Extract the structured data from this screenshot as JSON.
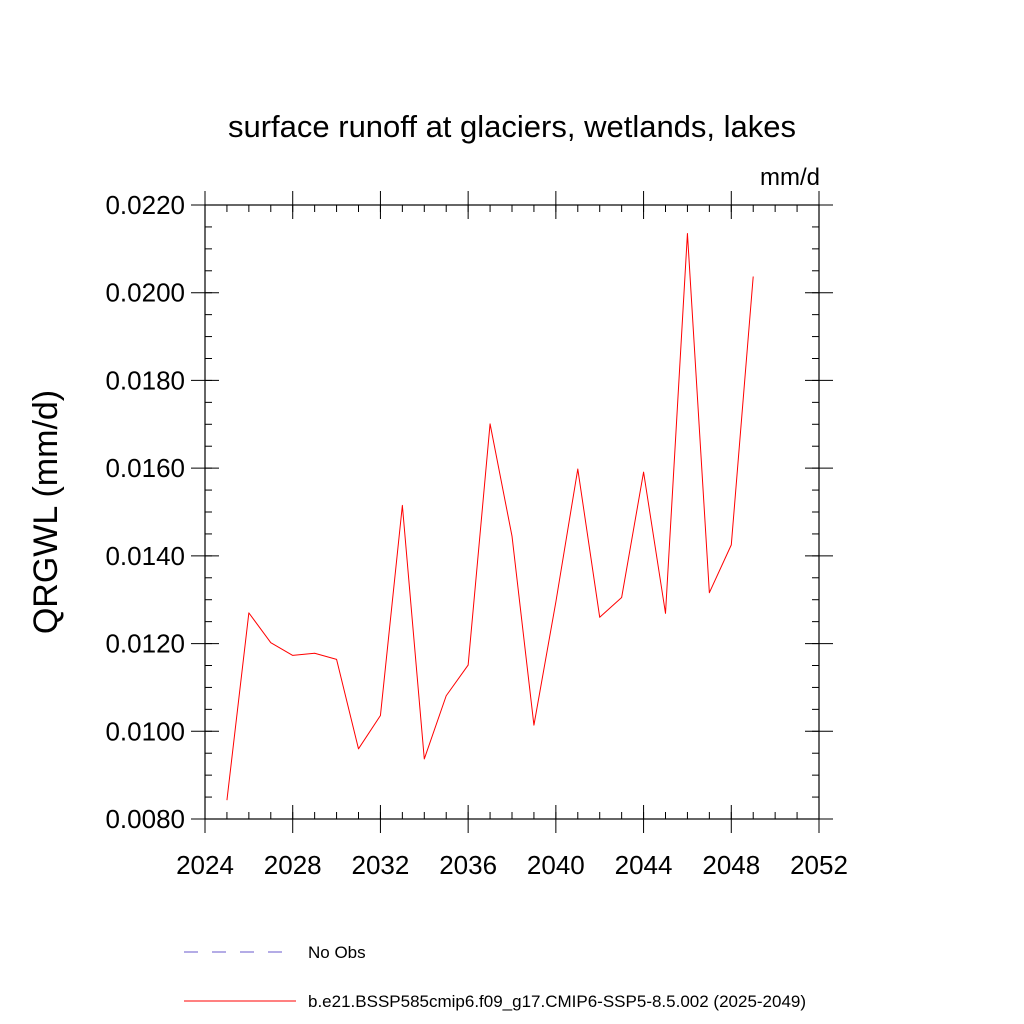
{
  "chart_data": {
    "type": "line",
    "title": "surface runoff at glaciers, wetlands, lakes",
    "units": "mm/d",
    "ylabel": "QRGWL  (mm/d)",
    "xlabel": "",
    "xlim": [
      2024,
      2052
    ],
    "ylim": [
      0.008,
      0.022
    ],
    "x_major_ticks": [
      2024,
      2028,
      2032,
      2036,
      2040,
      2044,
      2048,
      2052
    ],
    "x_tick_labels": [
      "2024",
      "2028",
      "2032",
      "2036",
      "2040",
      "2044",
      "2048",
      "2052"
    ],
    "y_major_ticks": [
      0.008,
      0.01,
      0.012,
      0.014,
      0.016,
      0.018,
      0.02,
      0.022
    ],
    "y_tick_labels": [
      "0.0080",
      "0.0100",
      "0.0120",
      "0.0140",
      "0.0160",
      "0.0180",
      "0.0200",
      "0.0220"
    ],
    "x_minor_step": 1,
    "y_minor_step": 0.0005,
    "grid": false,
    "legend_position": "bottom",
    "series": [
      {
        "name": "b.e21.BSSP585cmip6.f09_g17.CMIP6-SSP5-8.5.002 (2025-2049)",
        "color": "#ff0000",
        "style": "solid",
        "x": [
          2025,
          2026,
          2027,
          2028,
          2029,
          2030,
          2031,
          2032,
          2033,
          2034,
          2035,
          2036,
          2037,
          2038,
          2039,
          2040,
          2041,
          2042,
          2043,
          2044,
          2045,
          2046,
          2047,
          2048,
          2049
        ],
        "y": [
          0.00843,
          0.0127,
          0.01202,
          0.01173,
          0.01178,
          0.01164,
          0.0096,
          0.01036,
          0.01515,
          0.00937,
          0.01081,
          0.01151,
          0.01701,
          0.01445,
          0.01014,
          0.01295,
          0.01598,
          0.0126,
          0.01305,
          0.01591,
          0.01269,
          0.02135,
          0.01316,
          0.01425,
          0.02037
        ]
      }
    ],
    "legend": [
      {
        "label": "No Obs",
        "color": "#6a5acd",
        "style": "dashed"
      },
      {
        "label": "b.e21.BSSP585cmip6.f09_g17.CMIP6-SSP5-8.5.002 (2025-2049)",
        "color": "#ff0000",
        "style": "solid"
      }
    ]
  }
}
